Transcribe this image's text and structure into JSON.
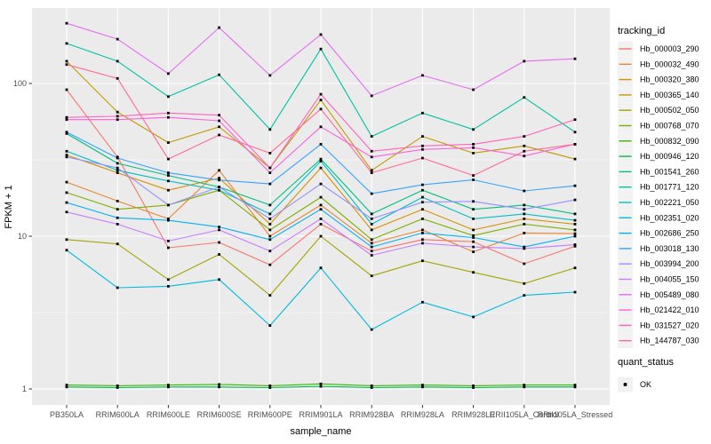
{
  "figure": {
    "panel_bg": "#EBEBEB",
    "grid_color": "#FFFFFF",
    "axis_text_color": "#4D4D4D",
    "tick_color": "#333333",
    "title_color": "#000000",
    "legend_key_bg": "#F2F2F2",
    "marker_color": "#000000"
  },
  "chart_data": {
    "type": "line",
    "title": "",
    "xlabel": "sample_name",
    "ylabel": "FPKM + 1",
    "y_scale": "log10",
    "y_ticks": [
      1,
      10,
      100
    ],
    "y_minor_ticks": [
      3.162,
      31.62
    ],
    "ylim": [
      0.93,
      312
    ],
    "grid": true,
    "legend_position": "right",
    "categories": [
      "PB350LA",
      "RRIM600LA",
      "RRIM600LE",
      "RRIM600SE",
      "RRIM600PE",
      "RRIM901LA",
      "RRIM928BA",
      "RRIM928LA",
      "RRIM928LE",
      "RRII105LA_Control",
      "RRII105LA_Stressed"
    ],
    "series": [
      {
        "name": "Hb_000003_290",
        "color": "#F8766D",
        "values": [
          91,
          33,
          8.4,
          9.1,
          6.5,
          12,
          8,
          9.5,
          9.2,
          6.6,
          8.6
        ]
      },
      {
        "name": "Hb_000032_490",
        "color": "#EA8331",
        "values": [
          22.6,
          17,
          13,
          27,
          10,
          16,
          9,
          11,
          7.9,
          10.5,
          10.4
        ]
      },
      {
        "name": "Hb_000320_380",
        "color": "#D89000",
        "values": [
          34,
          26,
          20,
          24,
          12,
          28,
          11,
          15,
          11,
          13,
          12
        ]
      },
      {
        "name": "Hb_000365_140",
        "color": "#C09B00",
        "values": [
          140,
          65,
          41,
          52,
          28,
          78,
          27,
          45,
          35,
          39,
          32
        ]
      },
      {
        "name": "Hb_000502_050",
        "color": "#A3A500",
        "values": [
          9.5,
          8.9,
          5.2,
          7.6,
          4.1,
          10,
          5.5,
          6.9,
          5.8,
          4.9,
          6.2
        ]
      },
      {
        "name": "Hb_000768_070",
        "color": "#7CAE00",
        "values": [
          19.3,
          15,
          16,
          20,
          11,
          18,
          9.5,
          13,
          10.1,
          12,
          11
        ]
      },
      {
        "name": "Hb_000832_090",
        "color": "#39B600",
        "values": [
          1.06,
          1.05,
          1.06,
          1.07,
          1.05,
          1.08,
          1.05,
          1.06,
          1.05,
          1.06,
          1.06
        ]
      },
      {
        "name": "Hb_000946_120",
        "color": "#00BB4E",
        "values": [
          1.03,
          1.02,
          1.03,
          1.03,
          1.02,
          1.04,
          1.02,
          1.03,
          1.02,
          1.03,
          1.03
        ]
      },
      {
        "name": "Hb_001541_260",
        "color": "#00BF7D",
        "values": [
          47,
          30,
          25,
          21,
          16,
          32,
          14,
          20,
          15,
          16,
          14
        ]
      },
      {
        "name": "Hb_001771_120",
        "color": "#00C1A3",
        "values": [
          183,
          140,
          82,
          114,
          50,
          168,
          45,
          64,
          50,
          81,
          48
        ]
      },
      {
        "name": "Hb_002221_050",
        "color": "#00BFC4",
        "values": [
          36,
          27,
          23,
          20,
          14,
          31,
          12,
          18,
          13,
          14,
          12.7
        ]
      },
      {
        "name": "Hb_002351_020",
        "color": "#00BAE0",
        "values": [
          8.1,
          4.6,
          4.7,
          5.2,
          2.6,
          6.2,
          2.45,
          3.7,
          2.96,
          4.1,
          4.3
        ]
      },
      {
        "name": "Hb_002686_250",
        "color": "#00B0F6",
        "values": [
          16.6,
          13.2,
          12.7,
          11.5,
          9.5,
          15,
          8.5,
          10.5,
          9.8,
          8.5,
          10
        ]
      },
      {
        "name": "Hb_003018_130",
        "color": "#35A2FF",
        "values": [
          48,
          32.5,
          26,
          23.3,
          22,
          40,
          19,
          21.7,
          23.4,
          19.8,
          21.4
        ]
      },
      {
        "name": "Hb_003994_200",
        "color": "#9590FF",
        "values": [
          33,
          28,
          16,
          21,
          13,
          22,
          13,
          16.7,
          16.9,
          15,
          17.3
        ]
      },
      {
        "name": "Hb_004055_150",
        "color": "#C77CFF",
        "values": [
          14.4,
          12,
          9.3,
          11,
          8,
          13,
          7.5,
          9,
          8.5,
          8.3,
          8.8
        ]
      },
      {
        "name": "Hb_005489_080",
        "color": "#E76BF3",
        "values": [
          248,
          195,
          116,
          232,
          113,
          209,
          83,
          113,
          91,
          140,
          145
        ]
      },
      {
        "name": "Hb_021422_010",
        "color": "#FA62DB",
        "values": [
          58,
          58,
          60,
          57,
          26,
          52,
          33,
          37,
          38,
          33.5,
          40
        ]
      },
      {
        "name": "Hb_031527_020",
        "color": "#FF62BC",
        "values": [
          60,
          61,
          64,
          62,
          28,
          85,
          36,
          39,
          40,
          45,
          58
        ]
      },
      {
        "name": "Hb_144787_030",
        "color": "#FF6A98",
        "values": [
          133,
          108,
          32,
          46,
          35,
          68,
          26,
          32.5,
          25,
          36,
          40
        ]
      }
    ],
    "legend": {
      "tracking_title": "tracking_id",
      "quant_title": "quant_status",
      "quant_items": [
        "OK"
      ]
    }
  }
}
